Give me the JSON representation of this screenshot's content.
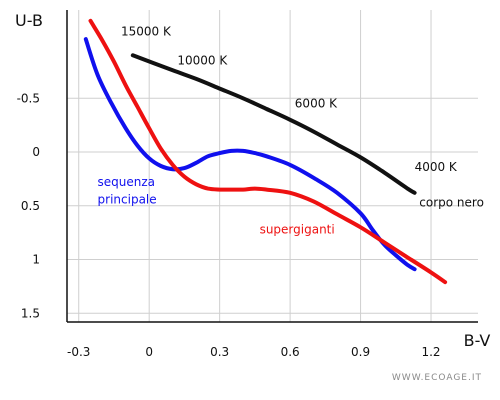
{
  "chart_data": {
    "type": "line",
    "xlabel": "B-V",
    "ylabel": "U-B",
    "xlim": [
      -0.35,
      1.4
    ],
    "ylim": [
      1.5,
      -0.9
    ],
    "y_inverted": true,
    "grid": true,
    "x_ticks": [
      {
        "v": -0.3,
        "label": "-0.3"
      },
      {
        "v": 0,
        "label": "0"
      },
      {
        "v": 0.3,
        "label": "0.3"
      },
      {
        "v": 0.6,
        "label": "0.6"
      },
      {
        "v": 0.9,
        "label": "0.9"
      },
      {
        "v": 1.2,
        "label": "1.2"
      }
    ],
    "y_ticks": [
      {
        "v": -0.5,
        "label": "-0.5"
      },
      {
        "v": 0,
        "label": "0"
      },
      {
        "v": 0.5,
        "label": "0.5"
      },
      {
        "v": 1,
        "label": "1"
      },
      {
        "v": 1.5,
        "label": "1.5"
      }
    ],
    "series": [
      {
        "name": "corpo nero",
        "color": "#111111",
        "x": [
          -0.07,
          0.1,
          0.2,
          0.3,
          0.4,
          0.5,
          0.6,
          0.7,
          0.8,
          0.9,
          1.0,
          1.1,
          1.13
        ],
        "y": [
          -0.9,
          -0.76,
          -0.68,
          -0.59,
          -0.5,
          -0.4,
          -0.3,
          -0.19,
          -0.07,
          0.05,
          0.19,
          0.34,
          0.38
        ]
      },
      {
        "name": "sequenza principale",
        "color": "#1010ee",
        "x": [
          -0.27,
          -0.22,
          -0.16,
          -0.1,
          -0.05,
          0.0,
          0.05,
          0.1,
          0.15,
          0.2,
          0.25,
          0.3,
          0.35,
          0.4,
          0.45,
          0.5,
          0.6,
          0.7,
          0.8,
          0.9,
          0.95,
          1.0,
          1.05,
          1.1,
          1.13
        ],
        "y": [
          -1.05,
          -0.72,
          -0.45,
          -0.22,
          -0.06,
          0.06,
          0.13,
          0.16,
          0.15,
          0.1,
          0.04,
          0.01,
          -0.01,
          -0.01,
          0.01,
          0.04,
          0.12,
          0.24,
          0.38,
          0.57,
          0.72,
          0.86,
          0.96,
          1.05,
          1.09
        ]
      },
      {
        "name": "supergiganti",
        "color": "#ee1111",
        "x": [
          -0.25,
          -0.2,
          -0.15,
          -0.1,
          -0.05,
          0.0,
          0.05,
          0.1,
          0.15,
          0.2,
          0.25,
          0.3,
          0.35,
          0.4,
          0.45,
          0.5,
          0.6,
          0.7,
          0.8,
          0.9,
          1.0,
          1.1,
          1.2,
          1.26
        ],
        "y": [
          -1.22,
          -1.04,
          -0.84,
          -0.62,
          -0.42,
          -0.22,
          -0.03,
          0.12,
          0.23,
          0.3,
          0.34,
          0.35,
          0.35,
          0.35,
          0.34,
          0.35,
          0.38,
          0.46,
          0.58,
          0.7,
          0.84,
          0.98,
          1.12,
          1.21
        ]
      }
    ],
    "annotations": [
      {
        "text": "15000 K",
        "color": "#111111",
        "x": -0.12,
        "y": -1.12
      },
      {
        "text": "10000 K",
        "color": "#111111",
        "x": 0.12,
        "y": -0.85
      },
      {
        "text": "6000 K",
        "color": "#111111",
        "x": 0.62,
        "y": -0.45
      },
      {
        "text": "4000 K",
        "color": "#111111",
        "x": 1.13,
        "y": 0.14
      },
      {
        "text": "corpo nero",
        "color": "#111111",
        "x": 1.15,
        "y": 0.47
      },
      {
        "text": "sequenza",
        "color": "#1010ee",
        "x": -0.22,
        "y": 0.28
      },
      {
        "text": "principale",
        "color": "#1010ee",
        "x": -0.22,
        "y": 0.44
      },
      {
        "text": "supergiganti",
        "color": "#ee1111",
        "x": 0.47,
        "y": 0.72
      }
    ]
  },
  "watermark": "WWW.ECOAGE.IT"
}
